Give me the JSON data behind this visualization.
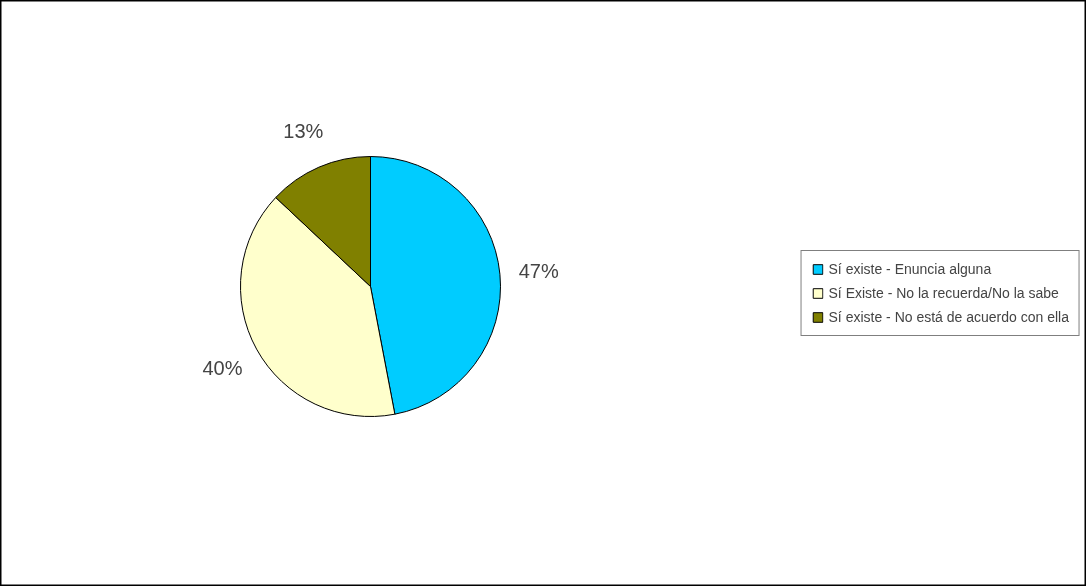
{
  "chart_data": {
    "type": "pie",
    "categories": [
      "Sí existe - Enuncia alguna",
      "Sí Existe - No la recuerda/No la sabe",
      "Sí existe - No está de acuerdo con ella"
    ],
    "values": [
      47,
      40,
      13
    ],
    "colors": [
      "#00ccff",
      "#ffffcc",
      "#808000"
    ],
    "value_labels": [
      "47%",
      "40%",
      "13%"
    ],
    "legend": "right"
  }
}
